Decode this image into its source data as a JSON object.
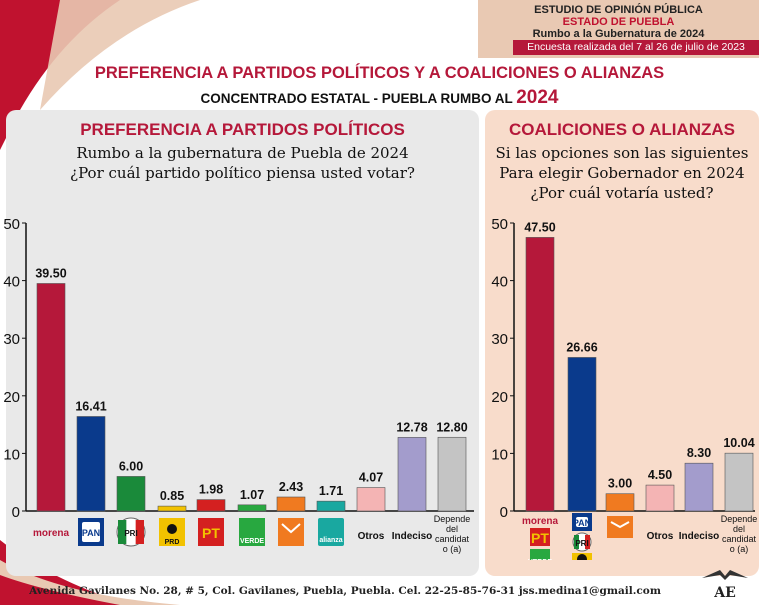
{
  "header": {
    "study": "ESTUDIO DE OPINIÓN PÚBLICA",
    "state": "ESTADO DE PUEBLA",
    "goal": "Rumbo a la Gubernatura de 2024",
    "survey_dates": "Encuesta realizada del 7 al 26 de julio de 2023"
  },
  "title": "PREFERENCIA A PARTIDOS POLÍTICOS Y A COALICIONES O ALIANZAS",
  "subtitle": "CONCENTRADO ESTATAL - PUEBLA RUMBO AL",
  "subtitle_year": "2024",
  "footer": "Avenida Gavilanes No. 28, # 5, Col. Gavilanes, Puebla, Puebla. Cel. 22-25-85-76-31  jss.medina1@gmail.com",
  "logo_text": "AE",
  "colors": {
    "morena": "#b5183a",
    "pan": "#0a3a8c",
    "pri": "#1a8a3a",
    "prd": "#f2c200",
    "pt": "#d42020",
    "verde": "#28a840",
    "mc": "#f07a20",
    "alianza": "#19a8a0",
    "otros": "#f4b4b4",
    "indeciso": "#a39ccc",
    "depende": "#c4c4c4"
  },
  "chart_data": [
    {
      "type": "bar",
      "title": "PREFERENCIA A PARTIDOS POLÍTICOS",
      "question": [
        "Rumbo a la gubernatura de Puebla de 2024",
        "¿Por cuál partido político piensa usted votar?"
      ],
      "categories": [
        "morena",
        "PAN",
        "PRI",
        "PRD",
        "PT",
        "VERDE",
        "MC",
        "alianza",
        "Otros",
        "Indeciso",
        "Depende del candidato (a)"
      ],
      "category_labels": [
        "morena",
        "PAN",
        "PRI",
        "PRD",
        "PT",
        "VERDE",
        "",
        "alianza",
        "Otros",
        "Indeciso",
        "Depende del candidat o (a)"
      ],
      "values": [
        39.5,
        16.41,
        6.0,
        0.85,
        1.98,
        1.07,
        2.43,
        1.71,
        4.07,
        12.78,
        12.8
      ],
      "value_labels": [
        "39.50",
        "16.41",
        "6.00",
        "0.85",
        "1.98",
        "1.07",
        "2.43",
        "1.71",
        "4.07",
        "12.78",
        "12.80"
      ],
      "yticks": [
        "0",
        "10",
        "20",
        "30",
        "40",
        "50"
      ],
      "ylim": [
        0,
        50
      ]
    },
    {
      "type": "bar",
      "title": "COALICIONES O ALIANZAS",
      "question": [
        "Si las opciones son las siguientes",
        "Para elegir Gobernador en 2024",
        "¿Por cuál votaría usted?"
      ],
      "categories": [
        "morena-PT-VERDE",
        "PAN-PRI-PRD",
        "MC",
        "Otros",
        "Indeciso",
        "Depende del candidato (a)"
      ],
      "category_labels": [
        "morena",
        "PAN",
        "",
        "Otros",
        "Indeciso",
        "Depende del candidat o (a)"
      ],
      "values": [
        47.5,
        26.66,
        3.0,
        4.5,
        8.3,
        10.04
      ],
      "value_labels": [
        "47.50",
        "26.66",
        "3.00",
        "4.50",
        "8.30",
        "10.04"
      ],
      "yticks": [
        "0",
        "10",
        "20",
        "30",
        "40",
        "50"
      ],
      "ylim": [
        0,
        50
      ]
    }
  ]
}
